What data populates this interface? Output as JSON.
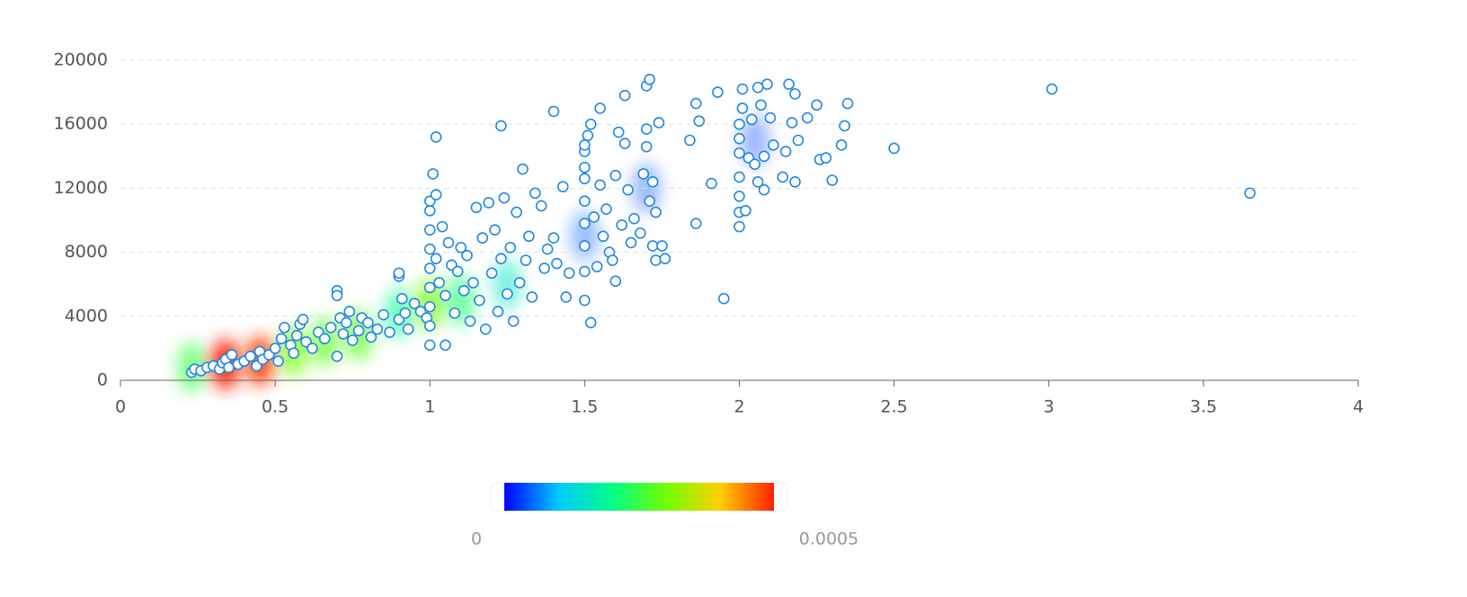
{
  "chart_data": {
    "type": "scatter",
    "color": "#1e88e5",
    "x": [
      0.23,
      0.24,
      0.26,
      0.28,
      0.3,
      0.32,
      0.33,
      0.34,
      0.35,
      0.36,
      0.38,
      0.4,
      0.42,
      0.44,
      0.45,
      0.46,
      0.48,
      0.5,
      0.51,
      0.52,
      0.53,
      0.55,
      0.56,
      0.57,
      0.58,
      0.59,
      0.6,
      0.62,
      0.64,
      0.66,
      0.68,
      0.7,
      0.7,
      0.7,
      0.71,
      0.72,
      0.73,
      0.74,
      0.75,
      0.77,
      0.78,
      0.8,
      0.81,
      0.83,
      0.85,
      0.87,
      0.9,
      0.9,
      0.9,
      0.91,
      0.92,
      0.93,
      0.95,
      0.97,
      0.99,
      1.0,
      1.0,
      1.0,
      1.0,
      1.0,
      1.0,
      1.0,
      1.0,
      1.0,
      1.01,
      1.02,
      1.02,
      1.02,
      1.03,
      1.04,
      1.05,
      1.05,
      1.06,
      1.07,
      1.08,
      1.09,
      1.1,
      1.11,
      1.12,
      1.13,
      1.14,
      1.15,
      1.16,
      1.17,
      1.18,
      1.19,
      1.2,
      1.21,
      1.22,
      1.23,
      1.23,
      1.24,
      1.25,
      1.26,
      1.27,
      1.28,
      1.29,
      1.3,
      1.31,
      1.32,
      1.33,
      1.34,
      1.36,
      1.37,
      1.38,
      1.4,
      1.4,
      1.41,
      1.43,
      1.44,
      1.45,
      1.5,
      1.5,
      1.5,
      1.5,
      1.5,
      1.5,
      1.5,
      1.5,
      1.5,
      1.51,
      1.52,
      1.52,
      1.53,
      1.54,
      1.55,
      1.55,
      1.56,
      1.57,
      1.58,
      1.59,
      1.6,
      1.6,
      1.61,
      1.62,
      1.63,
      1.63,
      1.64,
      1.65,
      1.66,
      1.68,
      1.69,
      1.7,
      1.7,
      1.7,
      1.71,
      1.71,
      1.72,
      1.72,
      1.73,
      1.73,
      1.74,
      1.75,
      1.76,
      1.84,
      1.86,
      1.86,
      1.87,
      1.91,
      1.93,
      1.95,
      2.0,
      2.0,
      2.0,
      2.0,
      2.0,
      2.0,
      2.0,
      2.01,
      2.01,
      2.02,
      2.03,
      2.04,
      2.05,
      2.06,
      2.06,
      2.07,
      2.08,
      2.08,
      2.09,
      2.1,
      2.11,
      2.14,
      2.15,
      2.16,
      2.17,
      2.18,
      2.19,
      2.18,
      2.22,
      2.25,
      2.26,
      2.28,
      2.3,
      2.33,
      2.34,
      2.35,
      2.5,
      3.01,
      3.65
    ],
    "values": [
      500,
      700,
      600,
      800,
      900,
      700,
      1100,
      1300,
      800,
      1600,
      1000,
      1200,
      1500,
      900,
      1800,
      1300,
      1600,
      2000,
      1200,
      2600,
      3300,
      2200,
      1700,
      2800,
      3500,
      3800,
      2400,
      2000,
      3000,
      2600,
      3300,
      1500,
      5600,
      5300,
      3900,
      2900,
      3600,
      4300,
      2500,
      3100,
      3900,
      3600,
      2700,
      3200,
      4100,
      3000,
      3800,
      6500,
      6700,
      5100,
      4200,
      3200,
      4800,
      4300,
      3900,
      2200,
      3400,
      4600,
      5800,
      7000,
      8200,
      9400,
      10600,
      11200,
      12900,
      15200,
      11600,
      7600,
      6100,
      9600,
      2200,
      5300,
      8600,
      7200,
      4200,
      6800,
      8300,
      5600,
      7800,
      3700,
      6100,
      10800,
      5000,
      8900,
      3200,
      11100,
      6700,
      9400,
      4300,
      15900,
      7600,
      11400,
      5400,
      8300,
      3700,
      10500,
      6100,
      13200,
      7500,
      9000,
      5200,
      11700,
      10900,
      7000,
      8200,
      16800,
      8900,
      7300,
      12100,
      5200,
      6700,
      5000,
      6800,
      8400,
      9800,
      11200,
      12600,
      13300,
      14300,
      14700,
      15300,
      3600,
      16000,
      10200,
      7100,
      17000,
      12200,
      9000,
      10700,
      8000,
      7500,
      12800,
      6200,
      15500,
      9700,
      14800,
      17800,
      11900,
      8600,
      10100,
      9200,
      12900,
      14600,
      15700,
      18400,
      18800,
      11200,
      8400,
      12400,
      7500,
      10500,
      16100,
      8400,
      7600,
      15000,
      17300,
      9800,
      16200,
      12300,
      18000,
      5100,
      9600,
      10500,
      11500,
      12700,
      14200,
      15100,
      16000,
      17000,
      18200,
      10600,
      13900,
      16300,
      13500,
      18300,
      12400,
      17200,
      14000,
      11900,
      18500,
      16400,
      14700,
      12700,
      14300,
      18500,
      16100,
      12400,
      15000,
      17900,
      16400,
      17200,
      13800,
      13900,
      12500,
      14700,
      15900,
      17300,
      14500,
      18200,
      11700
    ],
    "xlim": [
      0,
      4
    ],
    "xticks": [
      0,
      0.5,
      1,
      1.5,
      2,
      2.5,
      3,
      3.5,
      4
    ],
    "ylim": [
      0,
      20000
    ],
    "yticks": [
      0,
      4000,
      8000,
      12000,
      16000,
      20000
    ],
    "grid": true,
    "heatmap": {
      "x": [
        0.23,
        0.34,
        0.45,
        0.56,
        0.66,
        0.77,
        0.9,
        1.0,
        1.1,
        1.25,
        1.5,
        1.7,
        2.05
      ],
      "y": [
        800,
        1000,
        1200,
        1800,
        2400,
        2800,
        4200,
        4800,
        5000,
        6000,
        9000,
        12000,
        15000
      ],
      "values": [
        0.00025,
        0.0005,
        0.00048,
        0.0003,
        0.00028,
        0.00028,
        0.0002,
        0.0003,
        0.00022,
        0.00015,
        5e-05,
        4e-05,
        3e-05
      ]
    },
    "visual_map": {
      "range": [
        0,
        0.0005
      ],
      "colors": [
        "#0000ff",
        "#00c8ff",
        "#00ff88",
        "#70ff00",
        "#ffd000",
        "#ff2000"
      ]
    }
  }
}
